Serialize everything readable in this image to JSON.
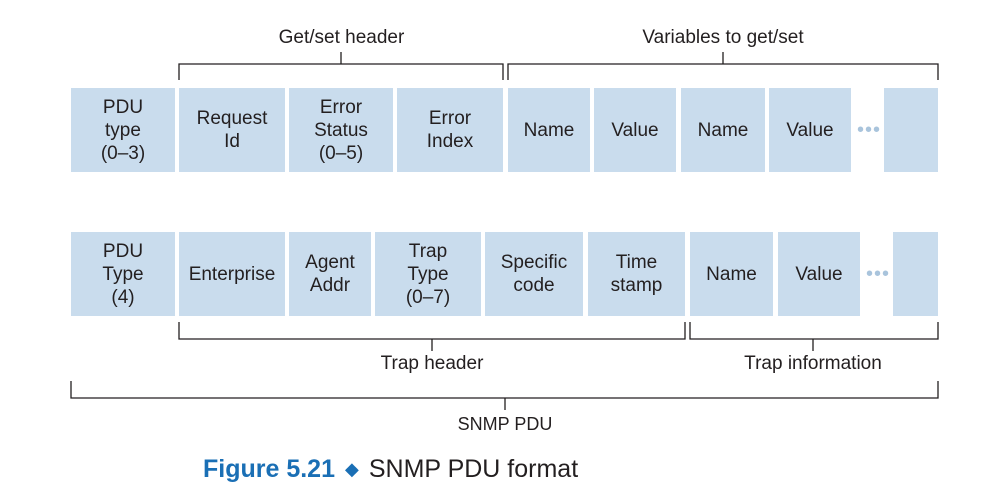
{
  "getset_row": {
    "brace_labels": {
      "getset_header": "Get/set header",
      "variables": "Variables to get/set"
    },
    "cells": [
      "PDU\ntype\n(0–3)",
      "Request\nId",
      "Error\nStatus\n(0–5)",
      "Error\nIndex",
      "Name",
      "Value",
      "Name",
      "Value",
      ""
    ],
    "ellipsis": "•••"
  },
  "trap_row": {
    "cells": [
      "PDU\nType\n(4)",
      "Enterprise",
      "Agent\nAddr",
      "Trap\nType\n(0–7)",
      "Specific\ncode",
      "Time\nstamp",
      "Name",
      "Value",
      ""
    ],
    "ellipsis": "•••",
    "brace_labels": {
      "trap_header": "Trap header",
      "trap_information": "Trap information"
    }
  },
  "outer_label": "SNMP PDU",
  "caption": {
    "figure": "Figure 5.21",
    "text": "SNMP PDU format"
  },
  "colors": {
    "cell_fill": "#c9dced",
    "accent": "#1a6fb5",
    "line": "#231f20"
  }
}
